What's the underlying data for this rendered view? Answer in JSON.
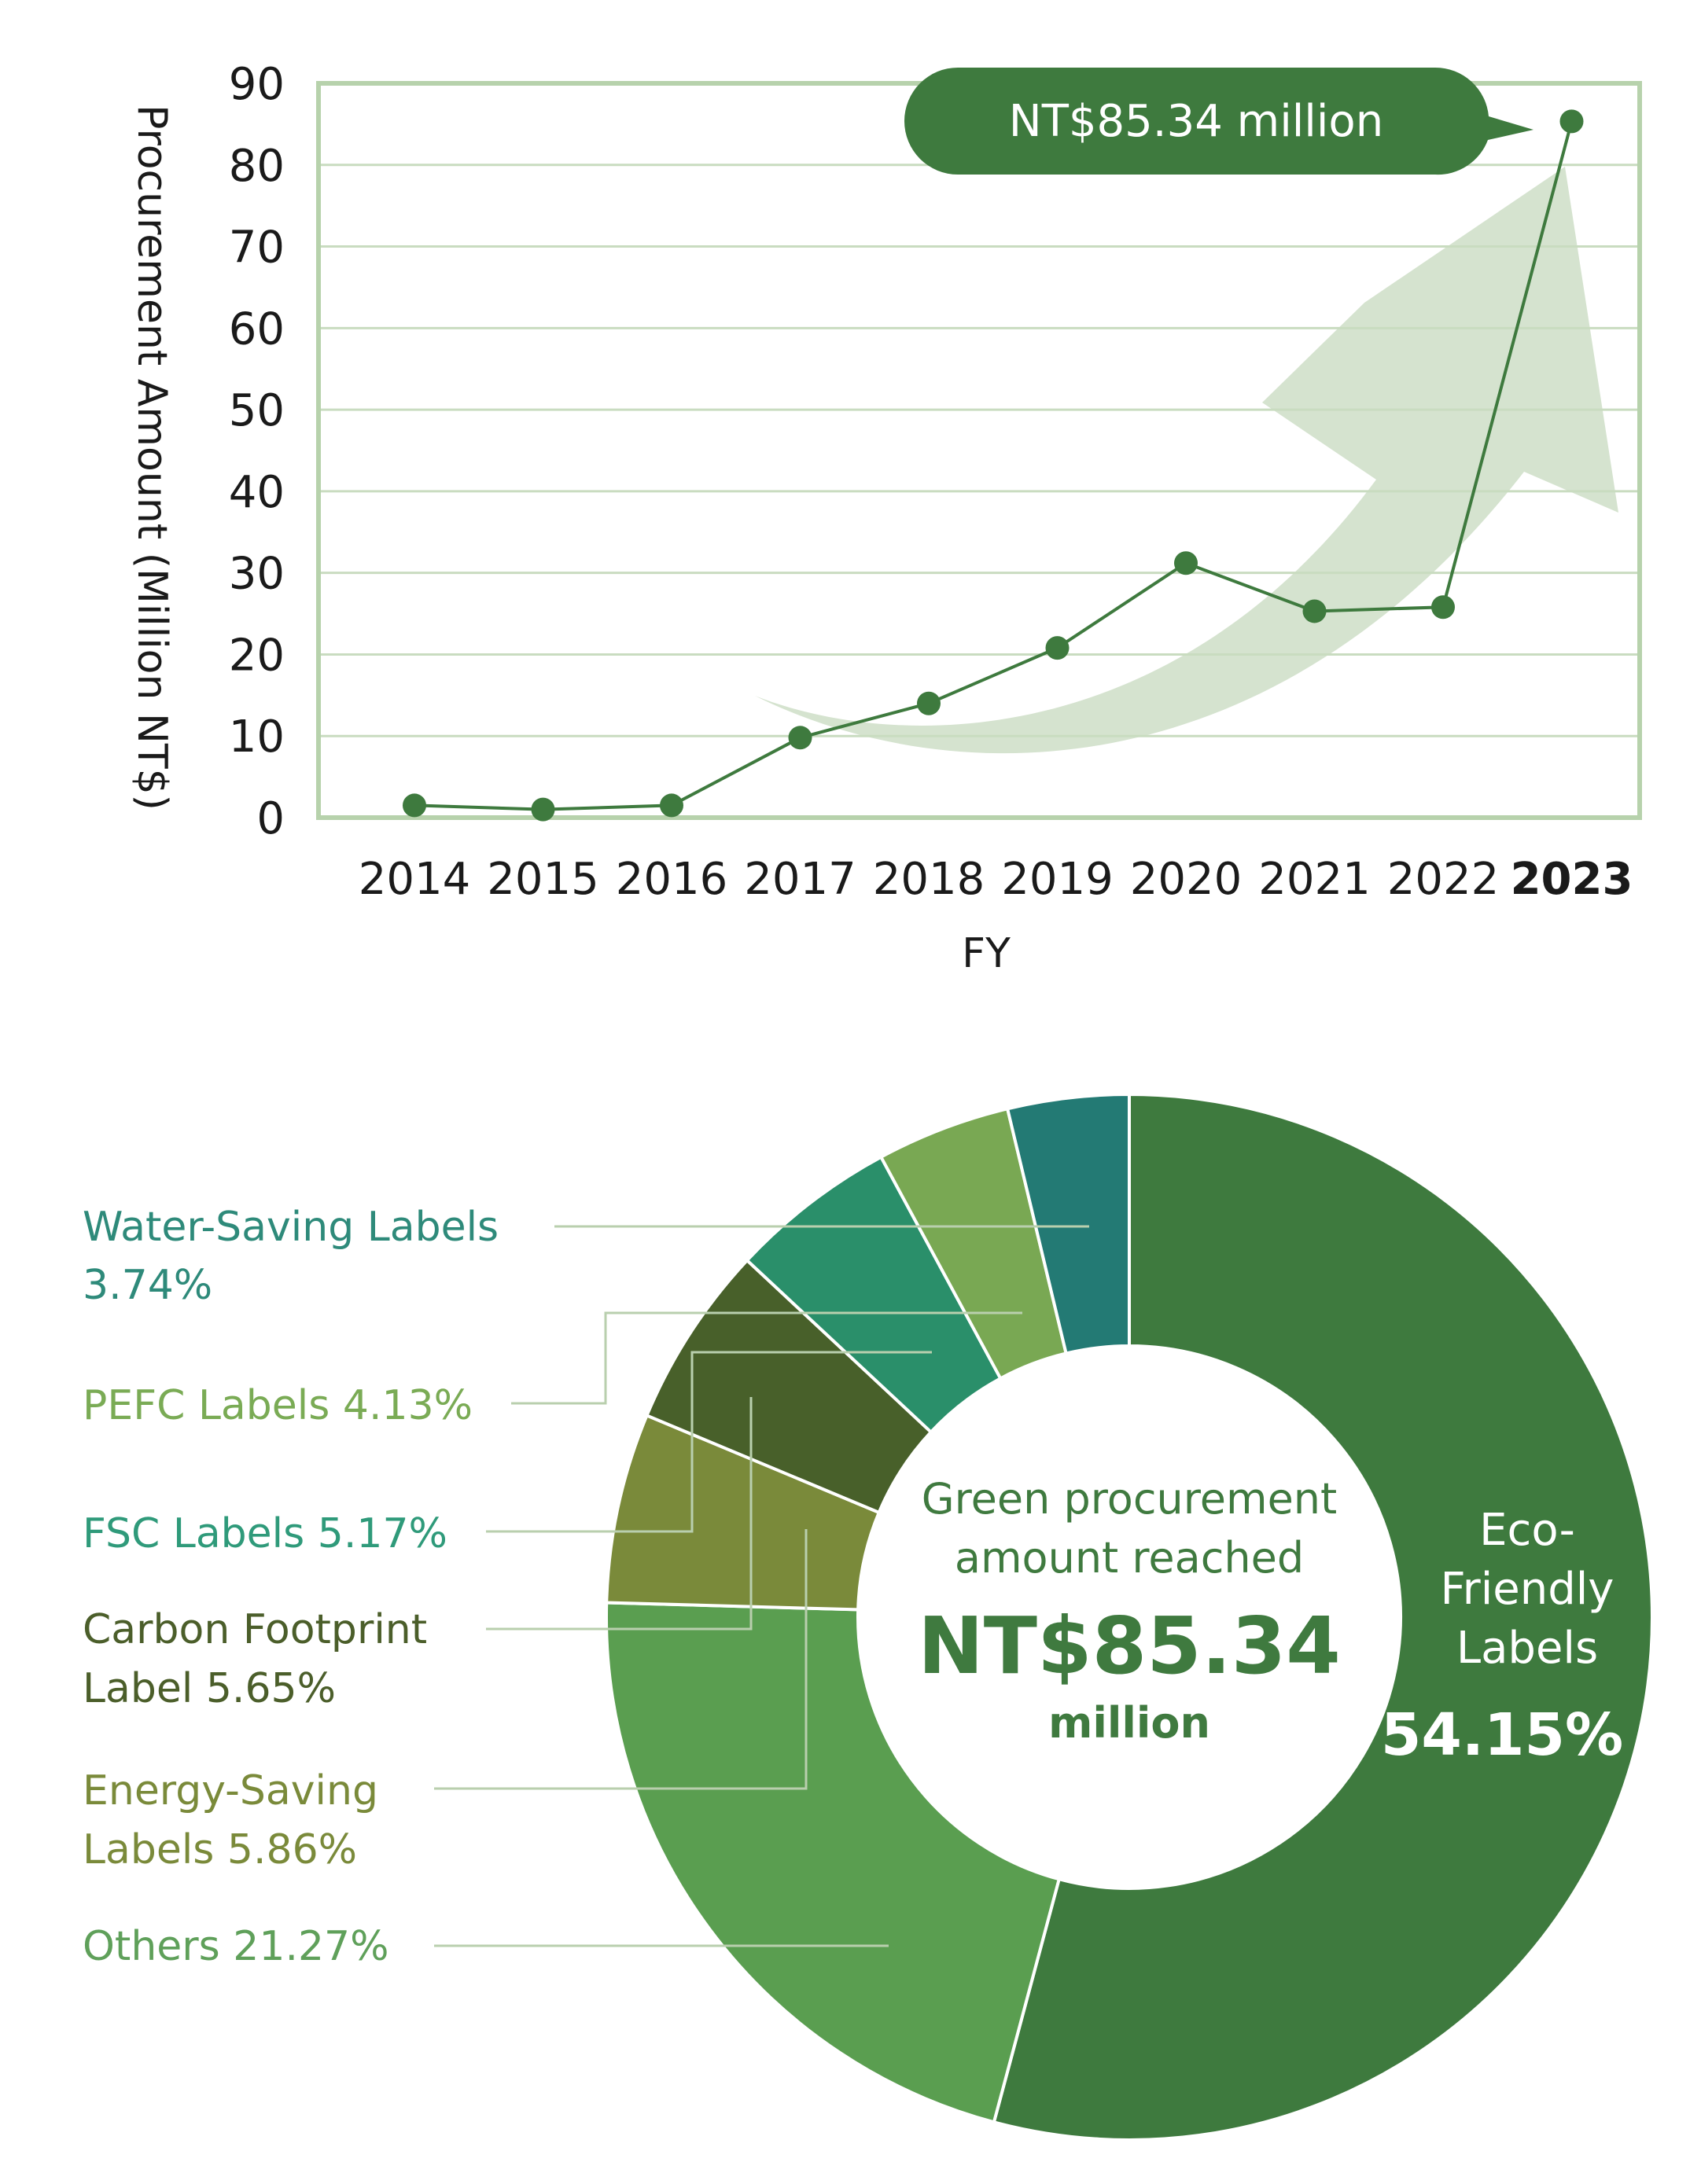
{
  "chart_data": [
    {
      "type": "line",
      "x": [
        "2014",
        "2015",
        "2016",
        "2017",
        "2018",
        "2019",
        "2020",
        "2021",
        "2022",
        "2023"
      ],
      "values": [
        1.5,
        1.0,
        1.5,
        9.8,
        14.0,
        20.8,
        31.2,
        25.3,
        25.8,
        85.34
      ],
      "xlabel": "FY",
      "ylabel": "Procurement Amount (Million NT$)",
      "ylim": [
        0,
        90
      ],
      "yticks": [
        "0",
        "10",
        "20",
        "30",
        "40",
        "50",
        "60",
        "70",
        "80",
        "90"
      ],
      "highlight_category": "2023",
      "callout": "NT$85.34 million",
      "grid": true,
      "colors": {
        "line": "#3e7a3e",
        "grid": "#c9dcc0",
        "frame": "#b7d2ac",
        "arrow": "#d5e3cf",
        "callout": "#3e7a3e"
      }
    },
    {
      "type": "pie",
      "donut": true,
      "center_text": {
        "line1": "Green procurement",
        "line2": "amount reached",
        "amount": "NT$85.34",
        "unit": "million"
      },
      "slices": [
        {
          "name": "Eco-Friendly Labels",
          "name_line1": "Eco-",
          "name_line2": "Friendly",
          "name_line3": "Labels",
          "value": 54.15,
          "pct": "54.15%",
          "color": "#3e7a3e"
        },
        {
          "name": "Others",
          "value": 21.27,
          "pct": "21.27%",
          "color": "#5a9e50"
        },
        {
          "name": "Energy-Saving Labels",
          "name_line1": "Energy-Saving",
          "name_line2": "Labels",
          "value": 5.86,
          "pct": "5.86%",
          "color": "#7a8a3a"
        },
        {
          "name": "Carbon Footprint Label",
          "name_line1": "Carbon Footprint",
          "name_line2": "Label",
          "value": 5.65,
          "pct": "5.65%",
          "color": "#48602a"
        },
        {
          "name": "FSC Labels",
          "value": 5.17,
          "pct": "5.17%",
          "color": "#2a8f6a"
        },
        {
          "name": "PEFC Labels",
          "value": 4.13,
          "pct": "4.13%",
          "color": "#79a853"
        },
        {
          "name": "Water-Saving Labels",
          "value": 3.74,
          "pct": "3.74%",
          "color": "#237a74"
        }
      ],
      "label_colors": {
        "Water-Saving Labels": "#2e8a7a",
        "PEFC Labels": "#7aab55",
        "FSC Labels": "#2f9a7a",
        "Carbon Footprint Label": "#4b5e2a",
        "Energy-Saving Labels": "#7a8a3a",
        "Others": "#5fa05a"
      },
      "leader_color": "#b9cfae"
    }
  ]
}
